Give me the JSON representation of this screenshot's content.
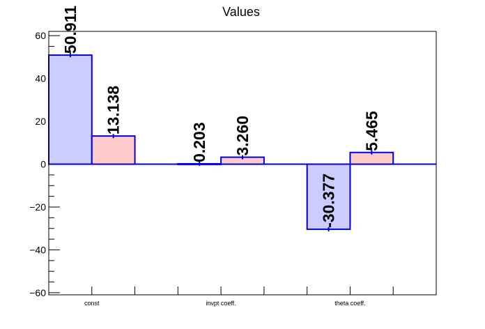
{
  "chart_data": {
    "type": "bar",
    "title": "Values",
    "categories": [
      "const",
      "invpt coeff.",
      "theta coeff."
    ],
    "series": [
      {
        "values": [
          50.911,
          0.203,
          -30.377
        ],
        "labels": [
          "50.911",
          "0.203",
          "-30.377"
        ],
        "fill": "#ccccff",
        "stroke": "#0000dd"
      },
      {
        "values": [
          13.138,
          3.26,
          5.465
        ],
        "labels": [
          "13.138",
          "3.260",
          "5.465"
        ],
        "fill": "#ffcccc",
        "stroke": "#0000dd"
      }
    ],
    "ylim": [
      -61,
      62
    ],
    "yticks": [
      -60,
      -40,
      -20,
      0,
      20,
      40,
      60
    ],
    "ytick_labels": [
      "−60",
      "−40",
      "−20",
      "0",
      "20",
      "40",
      "60"
    ],
    "xlabel": "",
    "ylabel": "",
    "grid": false
  }
}
